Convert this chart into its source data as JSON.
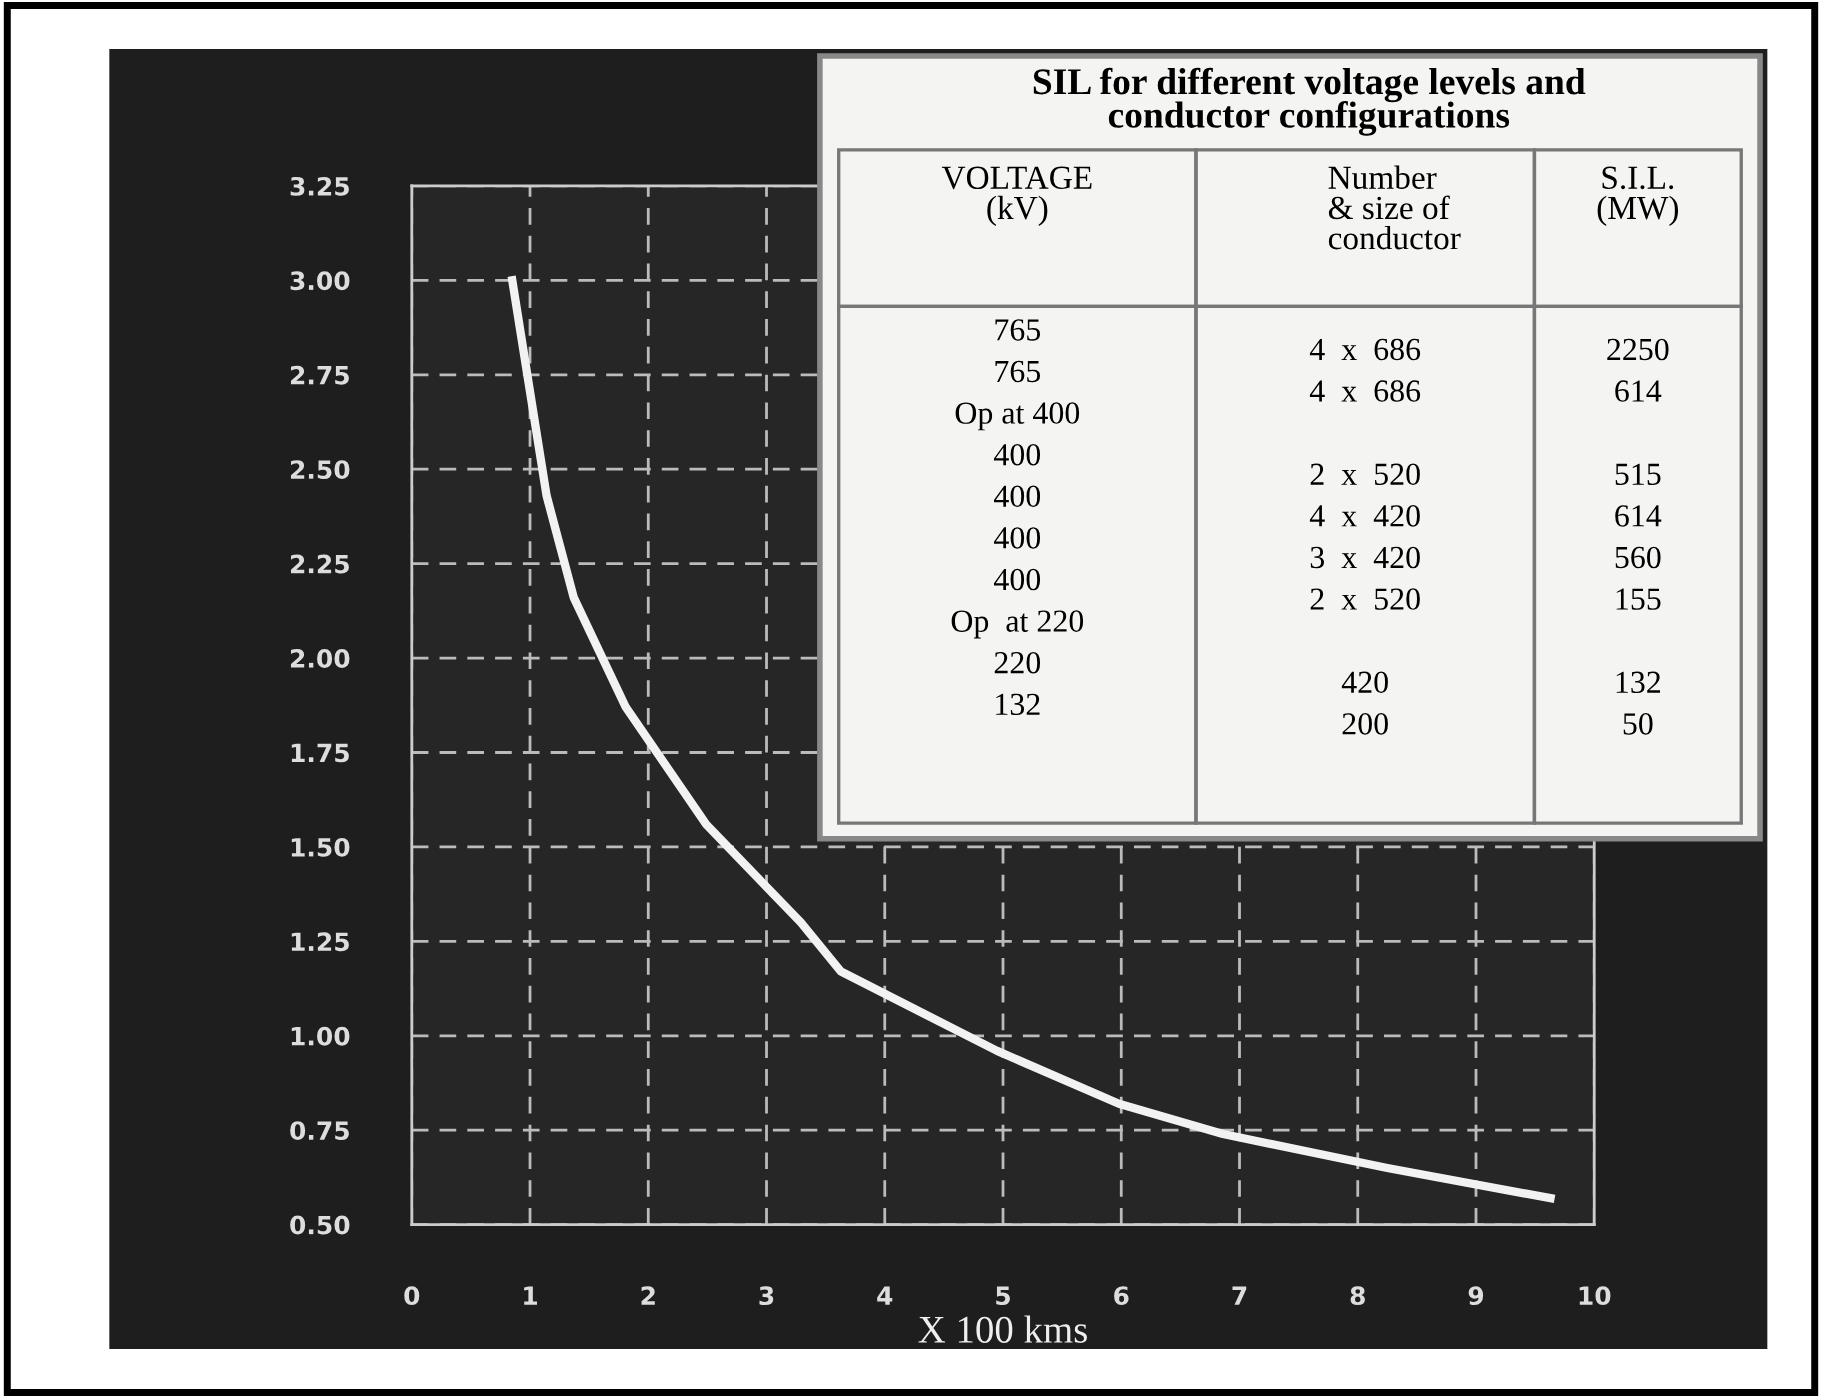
{
  "chart_data": [
    {
      "type": "line",
      "xlabel": "X 100 kms",
      "x": [
        0.85,
        1.14,
        1.37,
        1.81,
        2.49,
        3.29,
        3.63,
        4.95,
        5.98,
        6.86,
        8.25,
        9.63
      ],
      "series": [
        {
          "color": "#f2f2f2",
          "values": [
            3.0,
            2.43,
            2.16,
            1.87,
            1.56,
            1.3,
            1.17,
            0.96,
            0.82,
            0.74,
            0.65,
            0.57
          ]
        }
      ],
      "xlim": [
        0,
        10
      ],
      "xticks": [
        0,
        1,
        2,
        3,
        4,
        5,
        6,
        7,
        8,
        9,
        10
      ],
      "ylim": [
        0.5,
        3.25
      ],
      "yticks": [
        {
          "value": 0.5,
          "label": "0.50"
        },
        {
          "value": 0.75,
          "label": "0.75"
        },
        {
          "value": 1.0,
          "label": "1.00"
        },
        {
          "value": 1.25,
          "label": "1.25"
        },
        {
          "value": 1.5,
          "label": "1.50"
        },
        {
          "value": 1.75,
          "label": "1.75"
        },
        {
          "value": 2.0,
          "label": "2.00"
        },
        {
          "value": 2.25,
          "label": "2.25"
        },
        {
          "value": 2.5,
          "label": "2.50"
        },
        {
          "value": 2.75,
          "label": "2.75"
        },
        {
          "value": 3.0,
          "label": "3.00"
        },
        {
          "value": 3.25,
          "label": "3.25"
        }
      ],
      "grid": true,
      "line_style": "solid",
      "marker": "none"
    },
    {
      "type": "other",
      "title": "SIL for different voltage levels and\nconductor configurations",
      "annotations": [
        "VOLTAGE\n(kV)",
        "Number\n& size of\nconductor",
        "S.I.L.\n(MW)",
        "765\n765\nOp at 400\n400\n400\n400\n400\nOp  at 220\n220\n132",
        "4  x  686\n4  x  686\n\n2  x  520\n4  x  420\n3  x  420\n2  x  520\n\n420\n200",
        "2250\n614\n\n515\n614\n560\n155\n\n132\n50"
      ]
    }
  ]
}
